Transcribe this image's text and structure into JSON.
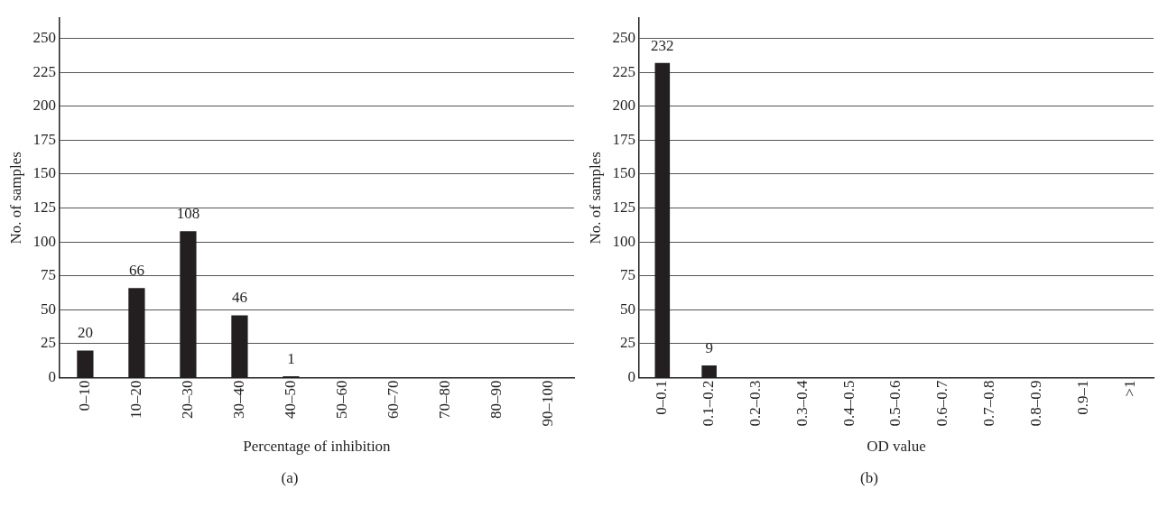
{
  "chart_data": [
    {
      "type": "bar",
      "xlabel": "Percentage of inhibition",
      "ylabel": "No. of samples",
      "categories": [
        "0–10",
        "10–20",
        "20–30",
        "30–40",
        "40–50",
        "50–60",
        "60–70",
        "70–80",
        "80–90",
        "90–100"
      ],
      "values": [
        20,
        66,
        108,
        46,
        1,
        0,
        0,
        0,
        0,
        0
      ],
      "value_labels": [
        "20",
        "66",
        "108",
        "46",
        "1",
        null,
        null,
        null,
        null,
        null
      ],
      "color": "#231f20",
      "ylim": [
        0,
        265
      ],
      "yticks": [
        0,
        25,
        50,
        75,
        100,
        125,
        150,
        175,
        200,
        225,
        250
      ],
      "grid": "y",
      "annotations": [
        "(a)"
      ]
    },
    {
      "type": "bar",
      "xlabel": "OD value",
      "ylabel": "No. of samples",
      "categories": [
        "0–0.1",
        "0.1–0.2",
        "0.2–0.3",
        "0.3–0.4",
        "0.4–0.5",
        "0.5–0.6",
        "0.6–0.7",
        "0.7–0.8",
        "0.8–0.9",
        "0.9–1",
        ">1"
      ],
      "values": [
        232,
        9,
        0,
        0,
        0,
        0,
        0,
        0,
        0,
        0,
        0
      ],
      "value_labels": [
        "232",
        "9",
        null,
        null,
        null,
        null,
        null,
        null,
        null,
        null,
        null
      ],
      "color": "#231f20",
      "ylim": [
        0,
        265
      ],
      "yticks": [
        0,
        25,
        50,
        75,
        100,
        125,
        150,
        175,
        200,
        225,
        250
      ],
      "grid": "y",
      "annotations": [
        "(b)"
      ]
    }
  ]
}
